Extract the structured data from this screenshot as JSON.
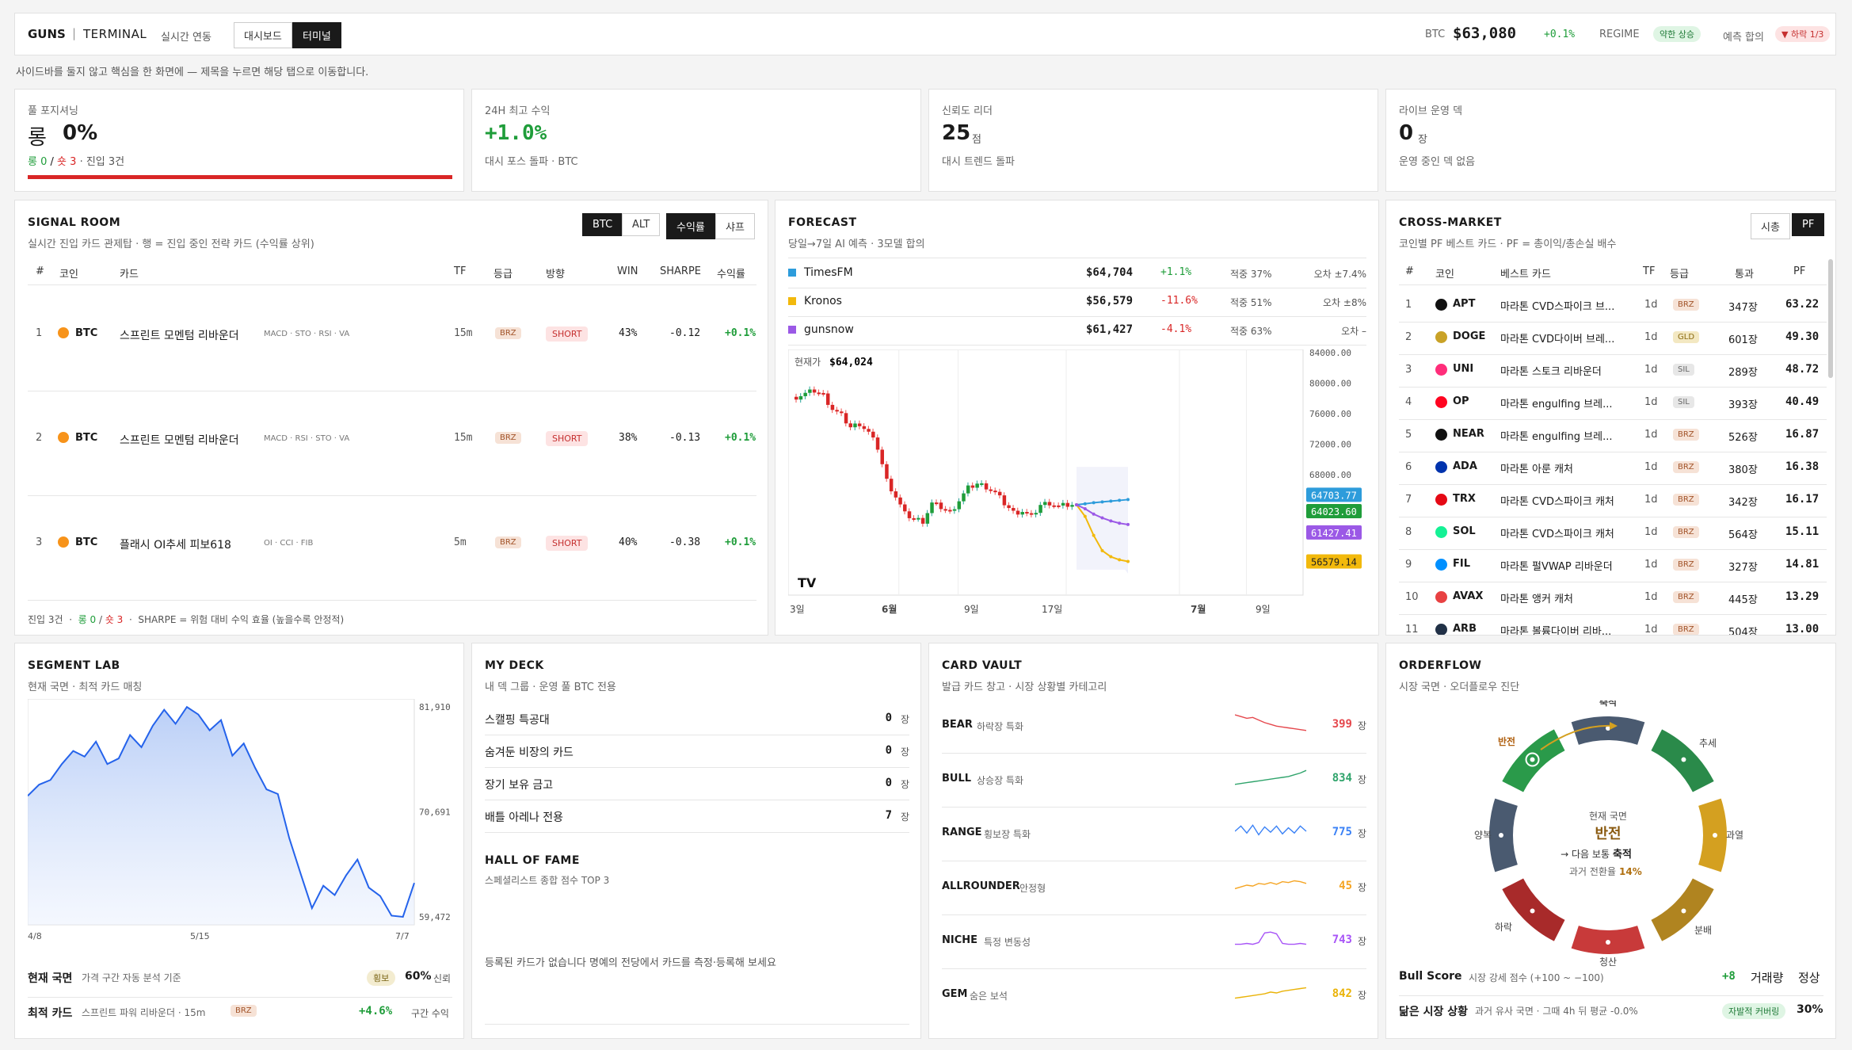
{
  "topbar": {
    "brand": "GUNS",
    "sep": "|",
    "terminal": "TERMINAL",
    "live": "실시간 연동",
    "tab_dashboard": "대시보드",
    "tab_terminal": "터미널",
    "btc_label": "BTC",
    "btc_price": "$63,080",
    "btc_change": "+0.1%",
    "regime_label": "REGIME",
    "regime_value": "약한 상승",
    "forecast_label": "예측 합의",
    "forecast_value": "▼ 하락 1/3"
  },
  "hint": "사이드바를 둘지 않고 핵심을 한 화면에 — 제목을 누르면 해당 탭으로 이동합니다.",
  "kpis": [
    {
      "label": "풀 포지셔닝",
      "value_prefix": "롱",
      "value": "0%",
      "sub_long": "롱 0",
      "sub_sep": "/",
      "sub_short": "숏 3",
      "sub_rest": "· 진입 3건"
    },
    {
      "label": "24H 최고 수익",
      "value": "+1.0%",
      "sub": "대시 포스 돌파 · BTC"
    },
    {
      "label": "신뢰도 리더",
      "value": "25",
      "unit": "점",
      "sub": "대시 트렌드 돌파"
    },
    {
      "label": "라이브 운영 덱",
      "value": "0",
      "unit": "장",
      "sub": "운영 중인 덱 없음"
    }
  ],
  "signal": {
    "title": "SIGNAL ROOM",
    "subtitle": "실시간 진입 카드 관제탑 · 행 = 진입 중인 전략 카드 (수익률 상위)",
    "tabs": [
      "BTC",
      "ALT"
    ],
    "sort": [
      "수익률",
      "샤프"
    ],
    "headers": [
      "#",
      "코인",
      "카드",
      "TF",
      "등급",
      "방향",
      "WIN",
      "SHARPE",
      "수익률"
    ],
    "rows": [
      {
        "n": "1",
        "coin": "BTC",
        "card": "스프린트 모멘텀 리바운더",
        "ind": "MACD · STO · RSI · VA",
        "tf": "15m",
        "grade": "BRZ",
        "dir": "SHORT",
        "win": "43%",
        "sharpe": "-0.12",
        "ret": "+0.1%"
      },
      {
        "n": "2",
        "coin": "BTC",
        "card": "스프린트 모멘텀 리바운더",
        "ind": "MACD · RSI · STO · VA",
        "tf": "15m",
        "grade": "BRZ",
        "dir": "SHORT",
        "win": "38%",
        "sharpe": "-0.13",
        "ret": "+0.1%"
      },
      {
        "n": "3",
        "coin": "BTC",
        "card": "플래시 OI추세 피보618",
        "ind": "OI · CCI · FIB",
        "tf": "5m",
        "grade": "BRZ",
        "dir": "SHORT",
        "win": "40%",
        "sharpe": "-0.38",
        "ret": "+0.1%"
      }
    ],
    "foot_a": "진입 3건",
    "foot_long": "롱 0",
    "foot_short": "숏 3",
    "foot_b": "SHARPE = 위험 대비 수익 효율 (높을수록 안정적)"
  },
  "forecast": {
    "title": "FORECAST",
    "subtitle": "당일→7일 AI 예측 · 3모델 합의",
    "models": [
      {
        "name": "TimesFM",
        "color": "#2d9cdb",
        "price": "$64,704",
        "chg": "+1.1%",
        "acc": "적중 37%",
        "err": "오차 ±7.4%"
      },
      {
        "name": "Kronos",
        "color": "#f2b90c",
        "price": "$56,579",
        "chg": "-11.6%",
        "acc": "적중 51%",
        "err": "오차 ±8%"
      },
      {
        "name": "gunsnow",
        "color": "#9b59e6",
        "price": "$61,427",
        "chg": "-4.1%",
        "acc": "적중 63%",
        "err": "오차 –"
      }
    ],
    "current_label": "현재가",
    "current": "$64,024",
    "yticks": [
      "84000.00",
      "80000.00",
      "76000.00",
      "72000.00",
      "68000.00"
    ],
    "xticks": [
      "3일",
      "6월",
      "9일",
      "17일",
      "7월",
      "9일"
    ],
    "tags": [
      "64703.77",
      "64023.60",
      "61427.41",
      "56579.14"
    ],
    "tv": "TV"
  },
  "chart_data": {
    "type": "line",
    "title": "FORECAST",
    "series": [
      {
        "name": "BTC",
        "values": [
          78200,
          78600,
          79000,
          78400,
          76600,
          75700,
          74200,
          74700,
          73500,
          71500,
          67200,
          65100,
          62800,
          62200,
          61900,
          64200,
          63700,
          63000,
          64600,
          66200,
          66800,
          66400,
          65600,
          64200,
          63000,
          63200,
          62400,
          64000,
          64300,
          63800,
          64000
        ]
      },
      {
        "name": "TimesFM",
        "values": [
          64024,
          64150,
          64300,
          64400,
          64500,
          64600,
          64704
        ]
      },
      {
        "name": "Kronos",
        "values": [
          64024,
          62500,
          60000,
          58000,
          57200,
          56800,
          56579
        ]
      },
      {
        "name": "gunsnow",
        "values": [
          64024,
          63500,
          62800,
          62300,
          61900,
          61600,
          61427
        ]
      }
    ],
    "ylim": [
      54000,
      84000
    ]
  },
  "cross": {
    "title": "CROSS-MARKET",
    "subtitle": "코인별 PF 베스트 카드 · PF = 총이익/총손실 배수",
    "tabs": [
      "시총",
      "PF"
    ],
    "headers": [
      "#",
      "코인",
      "베스트 카드",
      "TF",
      "등급",
      "통과",
      "PF"
    ],
    "rows": [
      {
        "n": "1",
        "coin": "APT",
        "color": "#111",
        "card": "마라톤 CVD스파이크 브...",
        "tf": "1d",
        "grade": "BRZ",
        "pass": "347장",
        "pf": "63.22"
      },
      {
        "n": "2",
        "coin": "DOGE",
        "color": "#c9a227",
        "card": "마라톤 CVD다이버 브레...",
        "tf": "1d",
        "grade": "GLD",
        "pass": "601장",
        "pf": "49.30"
      },
      {
        "n": "3",
        "coin": "UNI",
        "color": "#ff2d7a",
        "card": "마라톤 스토크 리바운더",
        "tf": "1d",
        "grade": "SIL",
        "pass": "289장",
        "pf": "48.72"
      },
      {
        "n": "4",
        "coin": "OP",
        "color": "#ff0420",
        "card": "마라톤 engulfing 브레...",
        "tf": "1d",
        "grade": "SIL",
        "pass": "393장",
        "pf": "40.49"
      },
      {
        "n": "5",
        "coin": "NEAR",
        "color": "#111",
        "card": "마라톤 engulfing 브레...",
        "tf": "1d",
        "grade": "BRZ",
        "pass": "526장",
        "pf": "16.87"
      },
      {
        "n": "6",
        "coin": "ADA",
        "color": "#0033ad",
        "card": "마라톤 아룬 캐처",
        "tf": "1d",
        "grade": "BRZ",
        "pass": "380장",
        "pf": "16.38"
      },
      {
        "n": "7",
        "coin": "TRX",
        "color": "#e50915",
        "card": "마라톤 CVD스파이크 캐처",
        "tf": "1d",
        "grade": "BRZ",
        "pass": "342장",
        "pf": "16.17"
      },
      {
        "n": "8",
        "coin": "SOL",
        "color": "#14f195",
        "card": "마라톤 CVD스파이크 캐처",
        "tf": "1d",
        "grade": "BRZ",
        "pass": "564장",
        "pf": "15.11"
      },
      {
        "n": "9",
        "coin": "FIL",
        "color": "#0090ff",
        "card": "마라톤 펄VWAP 리바운더",
        "tf": "1d",
        "grade": "BRZ",
        "pass": "327장",
        "pf": "14.81"
      },
      {
        "n": "10",
        "coin": "AVAX",
        "color": "#e84142",
        "card": "마라톤 앵커 캐처",
        "tf": "1d",
        "grade": "BRZ",
        "pass": "445장",
        "pf": "13.29"
      },
      {
        "n": "11",
        "coin": "ARB",
        "color": "#213147",
        "card": "마라톤 볼륨다이버 리바...",
        "tf": "1d",
        "grade": "BRZ",
        "pass": "504장",
        "pf": "13.00"
      }
    ]
  },
  "segment": {
    "title": "SEGMENT LAB",
    "subtitle": "현재 국면 · 최적 카드 매칭",
    "yticks": [
      "81,910",
      "70,691",
      "59,472"
    ],
    "xticks": [
      "4/8",
      "5/15",
      "7/7"
    ],
    "values": [
      72400,
      73600,
      74100,
      75800,
      77200,
      76600,
      78200,
      75800,
      76400,
      78900,
      77600,
      79900,
      81600,
      80100,
      81900,
      81100,
      79400,
      80500,
      76700,
      78000,
      75400,
      73100,
      72600,
      67900,
      64100,
      60400,
      62800,
      61800,
      63900,
      65600,
      62600,
      61700,
      59600,
      59472,
      63100
    ],
    "regime_label": "현재 국면",
    "regime_sub": "가격 구간 자동 분석 기준",
    "regime_badge": "횡보",
    "regime_conf": "60%",
    "regime_conf_label": "신뢰",
    "best_label": "최적 카드",
    "best_sub": "스프린트 파워 리바운더 · 15m",
    "best_grade": "BRZ",
    "best_ret": "+4.6%",
    "best_ret_label": "구간 수익"
  },
  "deck": {
    "title": "MY DECK",
    "subtitle": "내 덱 그룹 · 운영 풀 BTC 전용",
    "rows": [
      {
        "name": "스캘핑 특공대",
        "count": "0",
        "unit": "장"
      },
      {
        "name": "숨겨둔 비장의 카드",
        "count": "0",
        "unit": "장"
      },
      {
        "name": "장기 보유 금고",
        "count": "0",
        "unit": "장"
      },
      {
        "name": "배틀 아레나 전용",
        "count": "7",
        "unit": "장"
      }
    ],
    "hof_title": "HALL OF FAME",
    "hof_sub": "스페셜리스트 종합 점수 TOP 3",
    "hof_empty": "등록된 카드가 없습니다  명예의 전당에서 카드를 측정·등록해 보세요"
  },
  "vault": {
    "title": "CARD VAULT",
    "subtitle": "발급 카드 창고 · 시장 상황별 카테고리",
    "rows": [
      {
        "name": "BEAR",
        "desc": "하락장 특화",
        "count": "399",
        "unit": "장",
        "color": "#e5484d"
      },
      {
        "name": "BULL",
        "desc": "상승장 특화",
        "count": "834",
        "unit": "장",
        "color": "#30a46c"
      },
      {
        "name": "RANGE",
        "desc": "횡보장 특화",
        "count": "775",
        "unit": "장",
        "color": "#3b82f6"
      },
      {
        "name": "ALLROUNDER",
        "desc": "안정형",
        "count": "45",
        "unit": "장",
        "color": "#f5a524"
      },
      {
        "name": "NICHE",
        "desc": "특정 변동성",
        "count": "743",
        "unit": "장",
        "color": "#a855f7"
      },
      {
        "name": "GEM",
        "desc": "숨은 보석",
        "count": "842",
        "unit": "장",
        "color": "#eab308"
      }
    ]
  },
  "orderflow": {
    "title": "ORDERFLOW",
    "subtitle": "시장 국면 · 오더플로우 진단",
    "segments": [
      "축적",
      "추세",
      "과열",
      "분배",
      "청산",
      "하락",
      "양복",
      "반전"
    ],
    "center_label": "현재 국면",
    "center_value": "반전",
    "next_label": "→ 다음 보통",
    "next_value": "축적",
    "prob_label": "과거 전환율",
    "prob_value": "14%",
    "bull_label": "Bull Score",
    "bull_sub": "시장 강세 점수 (+100 ~ −100)",
    "bull_value": "+8",
    "bull_vol": "거래량",
    "bull_state": "정상",
    "sim_label": "닮은 시장 상황",
    "sim_sub": "과거 유사 국면 · 그때 4h 뒤 평균 -0.0%",
    "sim_badge": "자발적 커버링",
    "sim_value": "30%"
  }
}
